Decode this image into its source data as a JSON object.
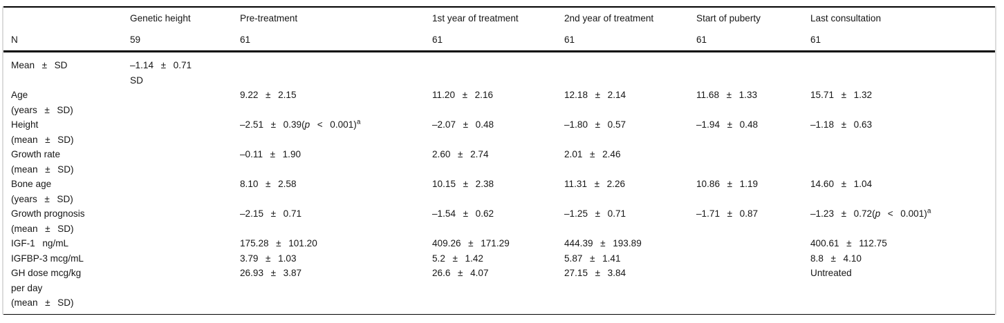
{
  "table": {
    "columns": [
      "",
      "Genetic height",
      "Pre-treatment",
      "1st year of treatment",
      "2nd year of treatment",
      "Start of puberty",
      "Last consultation"
    ],
    "n_row": {
      "label": "N",
      "values": [
        "59",
        "61",
        "61",
        "61",
        "61",
        "61"
      ]
    },
    "rows": [
      {
        "label": {
          "lines": [
            {
              "t": "Mean ± SD",
              "wide": true
            }
          ]
        },
        "cells": [
          {
            "lines": [
              "–1.14 ± 0.71",
              "SD"
            ]
          },
          null,
          null,
          null,
          null,
          null
        ]
      },
      {
        "label": {
          "lines": [
            {
              "t": "Age",
              "wide": false
            },
            {
              "t": "(years ± SD)",
              "wide": true
            }
          ]
        },
        "cells": [
          null,
          "9.22 ± 2.15",
          "11.20 ± 2.16",
          "12.18 ± 2.14",
          "11.68 ± 1.33",
          "15.71 ± 1.32"
        ]
      },
      {
        "label": {
          "lines": [
            {
              "t": "Height",
              "wide": false
            },
            {
              "t": "(mean ± SD)",
              "wide": true
            }
          ]
        },
        "cells": [
          null,
          {
            "parts": [
              {
                "t": "–2.51 ± 0.39("
              },
              {
                "t": "p",
                "style": "i"
              },
              {
                "t": " < "
              },
              {
                "t": "0.001)"
              },
              {
                "t": "a",
                "style": "sup"
              }
            ]
          },
          "–2.07 ± 0.48",
          "–1.80 ± 0.57",
          "–1.94 ± 0.48",
          "–1.18 ± 0.63"
        ]
      },
      {
        "label": {
          "lines": [
            {
              "t": "Growth rate",
              "wide": false
            },
            {
              "t": "(mean ± SD)",
              "wide": true
            }
          ]
        },
        "cells": [
          null,
          "–0.11 ± 1.90",
          "2.60 ± 2.74",
          "2.01 ± 2.46",
          null,
          null
        ]
      },
      {
        "label": {
          "lines": [
            {
              "t": "Bone age",
              "wide": false
            },
            {
              "t": "(years ± SD)",
              "wide": true
            }
          ]
        },
        "cells": [
          null,
          "8.10 ± 2.58",
          "10.15 ± 2.38",
          "11.31 ± 2.26",
          "10.86 ± 1.19",
          "14.60 ± 1.04"
        ]
      },
      {
        "label": {
          "lines": [
            {
              "t": "Growth prognosis",
              "wide": false
            },
            {
              "t": "(mean ± SD)",
              "wide": true
            }
          ]
        },
        "cells": [
          null,
          "–2.15 ± 0.71",
          "–1.54 ± 0.62",
          "–1.25 ± 0.71",
          "–1.71 ± 0.87",
          {
            "parts": [
              {
                "t": "–1.23 ± 0.72("
              },
              {
                "t": "p",
                "style": "i"
              },
              {
                "t": " < "
              },
              {
                "t": "0.001)"
              },
              {
                "t": "a",
                "style": "sup"
              }
            ]
          }
        ]
      },
      {
        "label": {
          "lines": [
            {
              "t": "IGF-1 ng/mL",
              "wide": true
            }
          ]
        },
        "cells": [
          null,
          "175.28 ± 101.20",
          "409.26 ± 171.29",
          "444.39 ± 193.89",
          null,
          "400.61 ± 112.75"
        ]
      },
      {
        "label": {
          "lines": [
            {
              "t": "IGFBP-3 mcg/mL",
              "wide": false
            }
          ]
        },
        "cells": [
          null,
          "3.79 ± 1.03",
          "5.2 ± 1.42",
          "5.87 ± 1.41",
          null,
          "8.8 ± 4.10"
        ]
      },
      {
        "label": {
          "lines": [
            {
              "t": "GH dose mcg/kg",
              "wide": false
            },
            {
              "t": "per day",
              "wide": false
            },
            {
              "t": "(mean ± SD)",
              "wide": true
            }
          ]
        },
        "cells": [
          null,
          "26.93 ± 3.87",
          "26.6 ± 4.07",
          "27.15 ± 3.84",
          null,
          "Untreated"
        ]
      }
    ]
  },
  "colors": {
    "rule": "#000000",
    "edge_line": "#dcdcdc",
    "text": "#161616"
  }
}
